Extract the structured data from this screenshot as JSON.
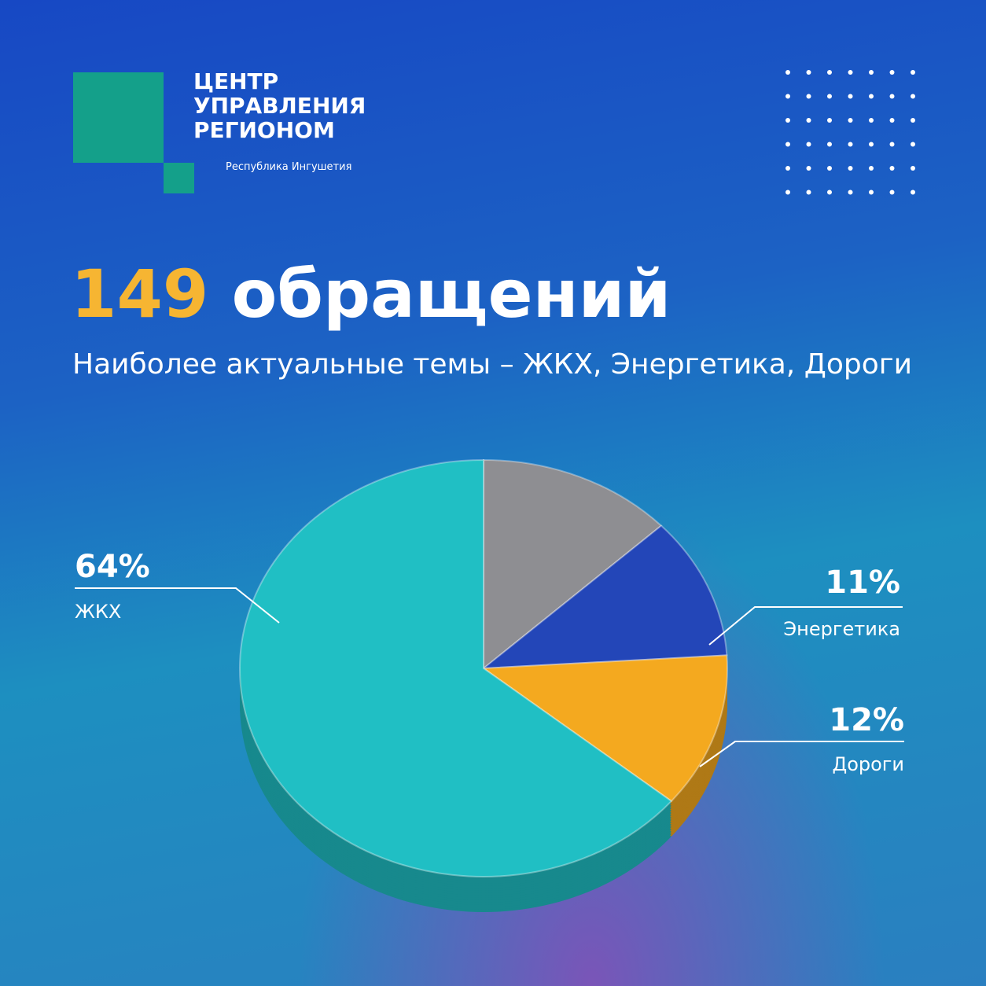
{
  "logo": {
    "lines": [
      "ЦЕНТР",
      "УПРАВЛЕНИЯ",
      "РЕГИОНОМ"
    ],
    "region": "Республика Ингушетия"
  },
  "chart_data": {
    "type": "pie",
    "title_count": 149,
    "title": "обращений",
    "subtitle": "Наиболее актуальные темы – ЖКХ, Энергетика, Дороги",
    "categories": [
      null,
      "Энергетика",
      "Дороги",
      "ЖКХ"
    ],
    "values": [
      13,
      11,
      12,
      64
    ],
    "value_labels": [
      null,
      "11%",
      "12%",
      "64%"
    ],
    "colors": [
      "#8e8e92",
      "#2346b8",
      "#f4a91f",
      "#20bfc4"
    ]
  }
}
